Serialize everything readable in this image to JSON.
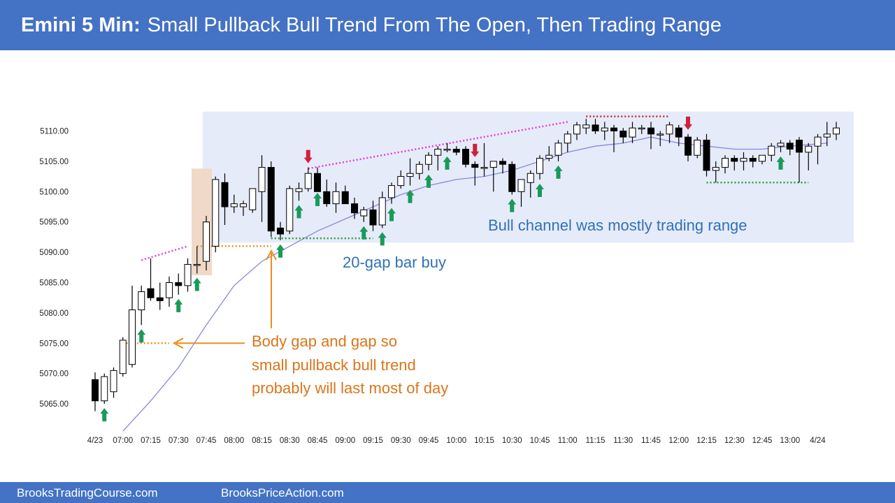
{
  "header": {
    "title_bold": "Emini 5 Min:",
    "title_rest": "Small Pullback Bull Trend From The Open, Then Trading Range"
  },
  "footer": {
    "left_link": "BrooksTradingCourse.com",
    "right_link": "BrooksPriceAction.com"
  },
  "colors": {
    "header_bg": "#4472c4",
    "range_box": "#e6ebfa",
    "highlight_box": "#f0d9c8",
    "ema": "#8888dd",
    "magenta_line": "#e838d8",
    "red_dotted": "#d62020",
    "green_dotted": "#2a9a3a",
    "orange": "#e8901a",
    "blue_text": "#2f72b8",
    "orange_text": "#d9761a",
    "up_arrow": "#1a9a5a",
    "down_arrow": "#d0203c"
  },
  "chart_data": {
    "type": "candlestick",
    "title": "",
    "xlabel": "",
    "ylabel": "",
    "ylim": [
      5061,
      5114
    ],
    "y_ticks": [
      "5065.00",
      "5070.00",
      "5075.00",
      "5080.00",
      "5085.00",
      "5090.00",
      "5095.00",
      "5100.00",
      "5105.00",
      "5110.00"
    ],
    "x_ticks": [
      {
        "bar": 0,
        "label": "4/23"
      },
      {
        "bar": 3,
        "label": "07:00"
      },
      {
        "bar": 6,
        "label": "07:15"
      },
      {
        "bar": 9,
        "label": "07:30"
      },
      {
        "bar": 12,
        "label": "07:45"
      },
      {
        "bar": 15,
        "label": "08:00"
      },
      {
        "bar": 18,
        "label": "08:15"
      },
      {
        "bar": 21,
        "label": "08:30"
      },
      {
        "bar": 24,
        "label": "08:45"
      },
      {
        "bar": 27,
        "label": "09:00"
      },
      {
        "bar": 30,
        "label": "09:15"
      },
      {
        "bar": 33,
        "label": "09:30"
      },
      {
        "bar": 36,
        "label": "09:45"
      },
      {
        "bar": 39,
        "label": "10:00"
      },
      {
        "bar": 42,
        "label": "10:15"
      },
      {
        "bar": 45,
        "label": "10:30"
      },
      {
        "bar": 48,
        "label": "10:45"
      },
      {
        "bar": 51,
        "label": "11:00"
      },
      {
        "bar": 54,
        "label": "11:15"
      },
      {
        "bar": 57,
        "label": "11:30"
      },
      {
        "bar": 60,
        "label": "11:45"
      },
      {
        "bar": 63,
        "label": "12:00"
      },
      {
        "bar": 66,
        "label": "12:15"
      },
      {
        "bar": 69,
        "label": "12:30"
      },
      {
        "bar": 72,
        "label": "12:45"
      },
      {
        "bar": 75,
        "label": "13:00"
      },
      {
        "bar": 78,
        "label": "4/24"
      }
    ],
    "candles": [
      [
        5069.0,
        5070.2,
        5063.8,
        5065.5
      ],
      [
        5065.5,
        5070.0,
        5065.0,
        5069.5
      ],
      [
        5067.0,
        5071.0,
        5066.0,
        5070.5
      ],
      [
        5070.0,
        5076.0,
        5069.5,
        5075.5
      ],
      [
        5071.5,
        5084.5,
        5071.0,
        5080.5
      ],
      [
        5080.5,
        5084.5,
        5078.0,
        5083.5
      ],
      [
        5084.0,
        5089.0,
        5082.0,
        5082.5
      ],
      [
        5082.5,
        5085.0,
        5080.5,
        5082.0
      ],
      [
        5082.5,
        5086.0,
        5081.0,
        5085.0
      ],
      [
        5085.0,
        5086.5,
        5083.0,
        5084.5
      ],
      [
        5084.5,
        5089.0,
        5083.5,
        5088.0
      ],
      [
        5088.0,
        5091.0,
        5086.5,
        5088.0
      ],
      [
        5088.5,
        5096.0,
        5087.0,
        5095.0
      ],
      [
        5091.0,
        5102.5,
        5090.0,
        5102.0
      ],
      [
        5101.5,
        5103.0,
        5094.5,
        5097.5
      ],
      [
        5097.5,
        5099.5,
        5096.5,
        5098.0
      ],
      [
        5097.5,
        5098.5,
        5096.0,
        5098.0
      ],
      [
        5097.0,
        5100.5,
        5096.5,
        5100.5
      ],
      [
        5100.0,
        5106.0,
        5095.0,
        5104.0
      ],
      [
        5104.0,
        5105.0,
        5092.5,
        5093.5
      ],
      [
        5094.0,
        5095.0,
        5092.0,
        5093.0
      ],
      [
        5093.5,
        5101.0,
        5093.0,
        5100.5
      ],
      [
        5100.0,
        5101.5,
        5098.5,
        5100.5
      ],
      [
        5100.5,
        5104.0,
        5100.0,
        5103.0
      ],
      [
        5103.0,
        5104.0,
        5100.5,
        5100.0
      ],
      [
        5100.0,
        5102.0,
        5097.5,
        5098.0
      ],
      [
        5098.0,
        5101.5,
        5096.5,
        5100.0
      ],
      [
        5100.0,
        5101.0,
        5098.0,
        5098.0
      ],
      [
        5098.0,
        5099.0,
        5095.5,
        5096.5
      ],
      [
        5096.0,
        5097.5,
        5095.0,
        5097.0
      ],
      [
        5097.0,
        5098.5,
        5093.5,
        5094.5
      ],
      [
        5094.5,
        5100.0,
        5094.0,
        5099.0
      ],
      [
        5099.0,
        5101.5,
        5098.0,
        5101.0
      ],
      [
        5101.0,
        5103.5,
        5100.5,
        5102.5
      ],
      [
        5102.5,
        5105.5,
        5101.0,
        5103.0
      ],
      [
        5103.0,
        5105.0,
        5102.0,
        5104.5
      ],
      [
        5104.5,
        5106.5,
        5103.5,
        5106.0
      ],
      [
        5106.0,
        5107.5,
        5103.5,
        5107.0
      ],
      [
        5107.0,
        5108.0,
        5106.5,
        5107.0
      ],
      [
        5107.0,
        5107.5,
        5106.0,
        5106.5
      ],
      [
        5107.0,
        5107.5,
        5104.0,
        5104.5
      ],
      [
        5104.5,
        5105.0,
        5101.0,
        5104.0
      ],
      [
        5104.0,
        5108.0,
        5102.5,
        5104.0
      ],
      [
        5104.0,
        5105.0,
        5100.0,
        5105.0
      ],
      [
        5105.0,
        5105.5,
        5103.0,
        5104.5
      ],
      [
        5104.5,
        5105.0,
        5099.5,
        5100.0
      ],
      [
        5100.0,
        5102.0,
        5097.5,
        5102.0
      ],
      [
        5101.5,
        5103.5,
        5099.0,
        5103.0
      ],
      [
        5103.0,
        5106.0,
        5102.0,
        5105.5
      ],
      [
        5105.5,
        5107.5,
        5105.0,
        5106.0
      ],
      [
        5106.0,
        5108.5,
        5105.0,
        5108.0
      ],
      [
        5108.0,
        5110.0,
        5106.5,
        5109.5
      ],
      [
        5109.5,
        5111.5,
        5108.5,
        5111.0
      ],
      [
        5110.5,
        5112.0,
        5109.5,
        5111.0
      ],
      [
        5111.0,
        5112.0,
        5109.5,
        5110.0
      ],
      [
        5110.0,
        5111.5,
        5108.5,
        5110.5
      ],
      [
        5110.5,
        5111.0,
        5106.5,
        5110.0
      ],
      [
        5110.0,
        5110.5,
        5108.0,
        5109.0
      ],
      [
        5109.0,
        5111.5,
        5108.0,
        5110.5
      ],
      [
        5110.5,
        5111.0,
        5109.5,
        5110.5
      ],
      [
        5110.5,
        5111.5,
        5107.0,
        5109.5
      ],
      [
        5109.5,
        5110.0,
        5107.5,
        5109.5
      ],
      [
        5109.5,
        5111.5,
        5108.0,
        5111.0
      ],
      [
        5110.5,
        5111.0,
        5107.5,
        5109.0
      ],
      [
        5109.0,
        5109.5,
        5105.0,
        5106.0
      ],
      [
        5106.0,
        5109.0,
        5105.5,
        5108.5
      ],
      [
        5108.5,
        5109.5,
        5102.5,
        5103.5
      ],
      [
        5103.5,
        5105.0,
        5101.5,
        5104.0
      ],
      [
        5104.0,
        5106.0,
        5103.0,
        5105.5
      ],
      [
        5105.5,
        5106.0,
        5103.5,
        5105.0
      ],
      [
        5105.0,
        5106.5,
        5103.5,
        5105.5
      ],
      [
        5105.5,
        5106.0,
        5104.0,
        5105.0
      ],
      [
        5105.0,
        5106.0,
        5104.5,
        5106.0
      ],
      [
        5106.0,
        5108.0,
        5105.0,
        5107.5
      ],
      [
        5107.5,
        5108.5,
        5106.5,
        5108.0
      ],
      [
        5108.0,
        5108.5,
        5106.0,
        5107.0
      ],
      [
        5108.5,
        5109.0,
        5101.5,
        5106.5
      ],
      [
        5106.5,
        5108.0,
        5103.5,
        5107.5
      ],
      [
        5107.5,
        5109.5,
        5104.5,
        5109.0
      ],
      [
        5109.0,
        5111.5,
        5107.5,
        5109.5
      ],
      [
        5109.5,
        5111.5,
        5108.5,
        5110.5
      ]
    ],
    "ema": [
      [
        3,
        5060.5
      ],
      [
        6,
        5065.5
      ],
      [
        9,
        5071.0
      ],
      [
        12,
        5078.0
      ],
      [
        15,
        5084.5
      ],
      [
        18,
        5088.5
      ],
      [
        21,
        5091.0
      ],
      [
        24,
        5093.5
      ],
      [
        27,
        5095.5
      ],
      [
        30,
        5097.5
      ],
      [
        33,
        5099.5
      ],
      [
        36,
        5101.0
      ],
      [
        39,
        5102.0
      ],
      [
        42,
        5102.5
      ],
      [
        45,
        5103.5
      ],
      [
        48,
        5105.0
      ],
      [
        51,
        5106.5
      ],
      [
        54,
        5107.5
      ],
      [
        57,
        5108.0
      ],
      [
        60,
        5109.0
      ],
      [
        63,
        5108.0
      ],
      [
        66,
        5107.5
      ],
      [
        69,
        5107.0
      ],
      [
        72,
        5107.0
      ],
      [
        75,
        5107.5
      ],
      [
        79,
        5108.0
      ]
    ],
    "up_arrows": [
      1,
      5,
      9,
      11,
      20,
      22,
      24,
      29,
      31,
      32,
      34,
      36,
      38,
      45,
      48,
      50,
      74
    ],
    "down_arrows": [
      23,
      41,
      64
    ],
    "annotations": {
      "bull_channel": "Bull channel was mostly trading range",
      "gap_bar": "20-gap bar buy",
      "body_gap_1": "Body gap and gap so",
      "body_gap_2": "small pullback bull trend",
      "body_gap_3": "probably will last most of day"
    },
    "grid": false,
    "legend": "none"
  }
}
